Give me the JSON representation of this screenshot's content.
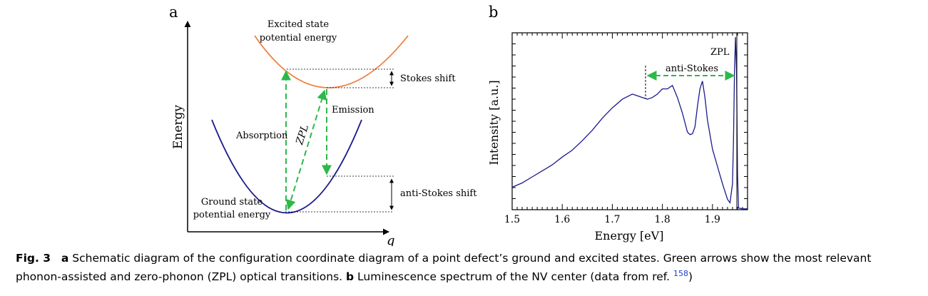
{
  "panel_a": {
    "label": "a",
    "y_axis_label": "Energy",
    "x_axis_label": "q",
    "excited_label_line1": "Excited state",
    "excited_label_line2": "potential energy",
    "ground_label_line1": "Ground state",
    "ground_label_line2": "potential energy",
    "stokes_shift": "Stokes shift",
    "anti_stokes_shift": "anti-Stokes shift",
    "emission": "Emission",
    "absorption": "Absorption",
    "zpl": "ZPL",
    "colors": {
      "ground": "#1a1a8c",
      "excited": "#f08040",
      "transition": "#2db84a"
    }
  },
  "panel_b": {
    "label": "b",
    "zpl_label": "ZPL",
    "anti_stokes_label": "anti-Stokes",
    "line_color": "#1a1a8c",
    "arrow_color": "#2db84a"
  },
  "chart_data": {
    "type": "line",
    "xlabel": "Energy [eV]",
    "ylabel": "Intensity [a.u.]",
    "xlim": [
      1.5,
      1.97
    ],
    "ylim": [
      0,
      1
    ],
    "x_ticks": [
      "1.5",
      "1.6",
      "1.7",
      "1.8",
      "1.9"
    ],
    "series": [
      {
        "x": [
          1.5,
          1.52,
          1.54,
          1.56,
          1.58,
          1.6,
          1.62,
          1.64,
          1.66,
          1.68,
          1.7,
          1.72,
          1.74,
          1.75,
          1.76,
          1.77,
          1.78,
          1.79,
          1.8,
          1.81,
          1.82,
          1.83,
          1.84,
          1.85,
          1.855,
          1.86,
          1.865,
          1.87,
          1.875,
          1.88,
          1.885,
          1.89,
          1.9,
          1.91,
          1.92,
          1.93,
          1.935,
          1.94,
          1.942,
          1.944,
          1.946,
          1.948,
          1.95,
          1.952,
          1.96,
          1.97
        ],
        "y": [
          0.13,
          0.155,
          0.19,
          0.225,
          0.26,
          0.305,
          0.345,
          0.4,
          0.46,
          0.53,
          0.59,
          0.64,
          0.67,
          0.66,
          0.65,
          0.64,
          0.65,
          0.67,
          0.7,
          0.7,
          0.72,
          0.65,
          0.56,
          0.45,
          0.435,
          0.44,
          0.48,
          0.6,
          0.7,
          0.745,
          0.65,
          0.52,
          0.35,
          0.25,
          0.15,
          0.06,
          0.04,
          0.15,
          0.4,
          0.8,
          1.0,
          0.8,
          0.2,
          0.01,
          0.005,
          0.005
        ]
      }
    ]
  },
  "caption": {
    "fig_label": "Fig. 3",
    "a_label": "a",
    "a_text": " Schematic diagram of the configuration coordinate diagram of a point defect’s ground and excited states. Green arrows show the most relevant phonon-assisted and zero-phonon (ZPL) optical transitions. ",
    "b_label": "b",
    "b_text": " Luminescence spectrum of the NV center (data from ref. ",
    "ref": "158",
    "end": ")"
  }
}
